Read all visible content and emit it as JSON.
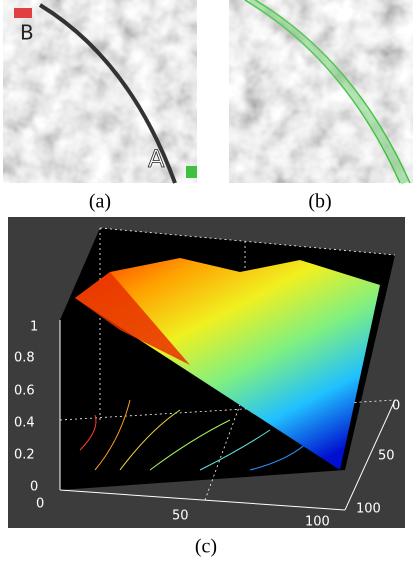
{
  "panels": [
    {
      "caption": "(a)",
      "point_labels": [
        "B",
        "A"
      ]
    },
    {
      "caption": "(b)"
    },
    {
      "caption": "(c)",
      "z_ticks": [
        "1",
        "0.8",
        "0.6",
        "0.4",
        "0.2",
        "0"
      ],
      "x_ticks": [
        "0",
        "50",
        "100"
      ],
      "y_ticks": [
        "0",
        "50",
        "100"
      ]
    }
  ]
}
